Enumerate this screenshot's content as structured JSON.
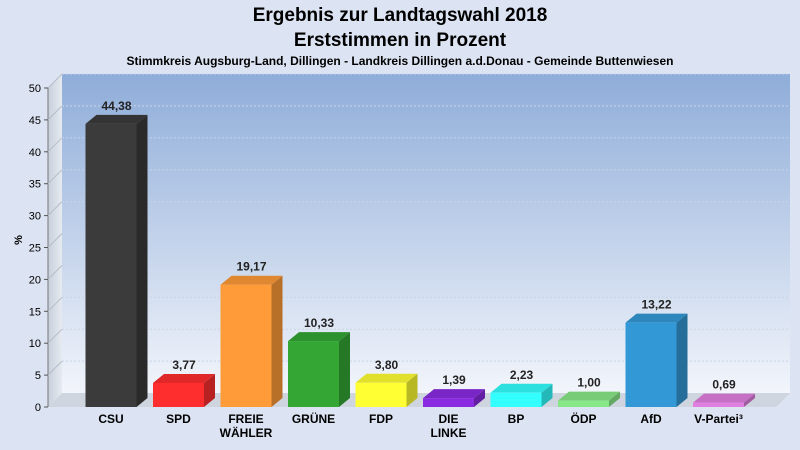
{
  "chart_data": {
    "type": "bar",
    "title": "Ergebnis zur Landtagswahl 2018",
    "subtitle": "Erststimmen in Prozent",
    "caption": "Stimmkreis Augsburg-Land, Dillingen - Landkreis Dillingen a.d.Donau - Gemeinde Buttenwiesen",
    "ylabel": "%",
    "ylim": [
      0,
      50
    ],
    "yticks": [
      0,
      5,
      10,
      15,
      20,
      25,
      30,
      35,
      40,
      45,
      50
    ],
    "grid": true,
    "categories": [
      [
        "CSU"
      ],
      [
        "SPD"
      ],
      [
        "FREIE",
        "WÄHLER"
      ],
      [
        "GRÜNE"
      ],
      [
        "FDP"
      ],
      [
        "DIE",
        "LINKE"
      ],
      [
        "BP"
      ],
      [
        "ÖDP"
      ],
      [
        "AfD"
      ],
      [
        "V-Partei³"
      ]
    ],
    "values": [
      44.38,
      3.77,
      19.17,
      10.33,
      3.8,
      1.39,
      2.23,
      1.0,
      13.22,
      0.69
    ],
    "value_labels": [
      "44,38",
      "3,77",
      "19,17",
      "10,33",
      "3,80",
      "1,39",
      "2,23",
      "1,00",
      "13,22",
      "0,69"
    ],
    "colors": [
      "#3b3b3b",
      "#ff2e2e",
      "#ff9b38",
      "#33a633",
      "#ffff33",
      "#8a2be2",
      "#33ffff",
      "#88e888",
      "#3399d6",
      "#e07fe0"
    ]
  }
}
